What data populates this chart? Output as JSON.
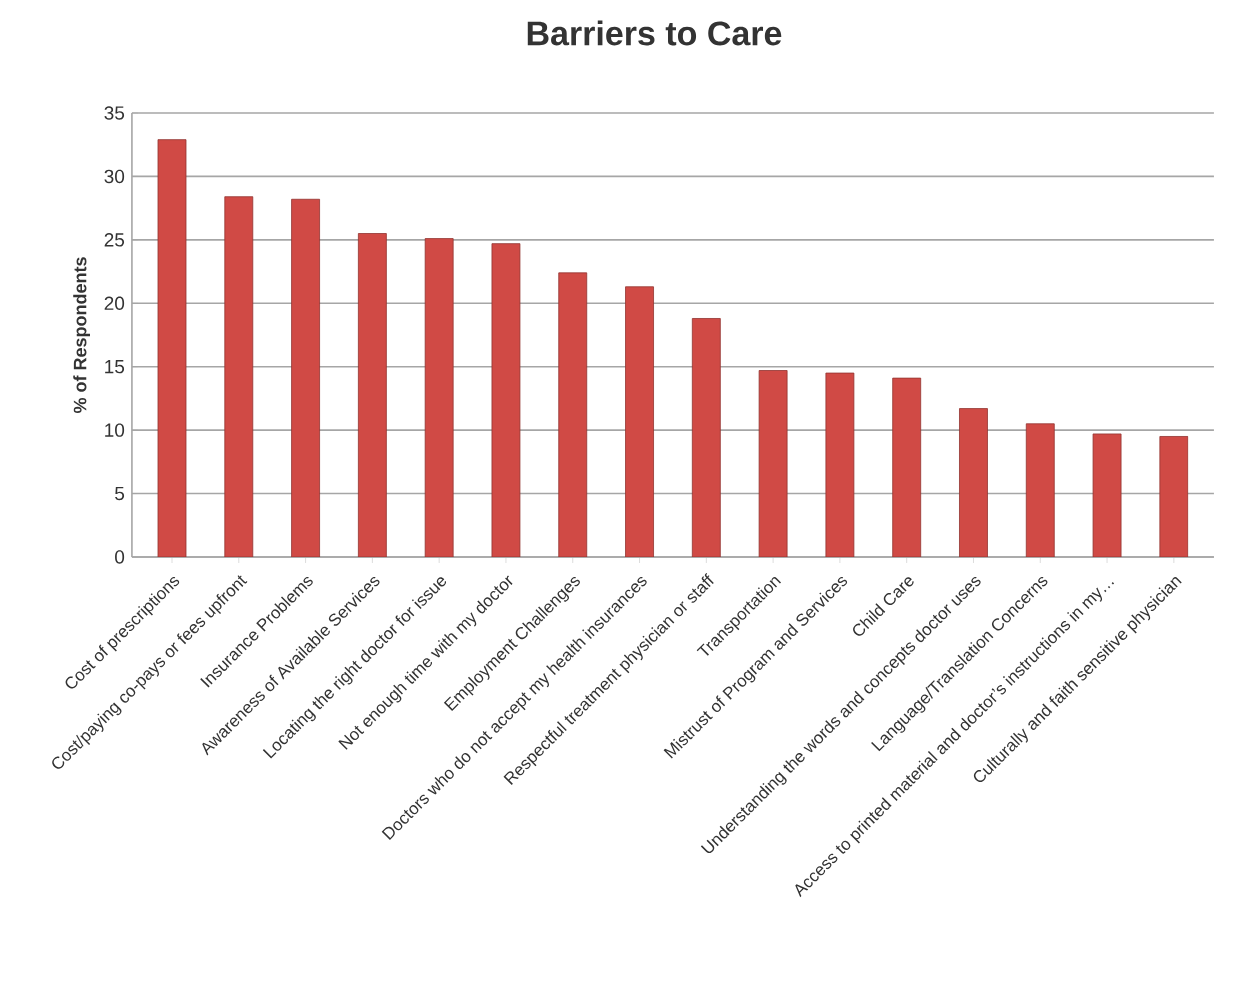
{
  "chart_data": {
    "type": "bar",
    "title": "Barriers to Care",
    "ylabel": "% of Respondents",
    "categories": [
      "Cost of prescriptions",
      "Cost/paying co-pays or fees upfront",
      "Insurance Problems",
      "Awareness of Available Services",
      "Locating the right doctor for issue",
      "Not enough time with my doctor",
      "Employment Challenges",
      "Doctors who do not accept my health insurances",
      "Respectful treatment physician or staff",
      "Transportation",
      "Mistrust of Program and Services",
      "Child Care",
      "Understanding the words and concepts doctor uses",
      "Language/Translation Concerns",
      "Access to printed material and doctor’s instructions in my…",
      "Culturally and faith sensitive physician"
    ],
    "values": [
      32.9,
      28.4,
      28.2,
      25.5,
      25.1,
      24.7,
      22.4,
      21.3,
      18.8,
      14.7,
      14.5,
      14.1,
      11.7,
      10.5,
      9.7,
      9.5
    ],
    "color": "#d04a45",
    "ylim": [
      0,
      35
    ],
    "yticks": [
      0,
      5,
      10,
      15,
      20,
      25,
      30,
      35
    ],
    "grid": "y"
  }
}
